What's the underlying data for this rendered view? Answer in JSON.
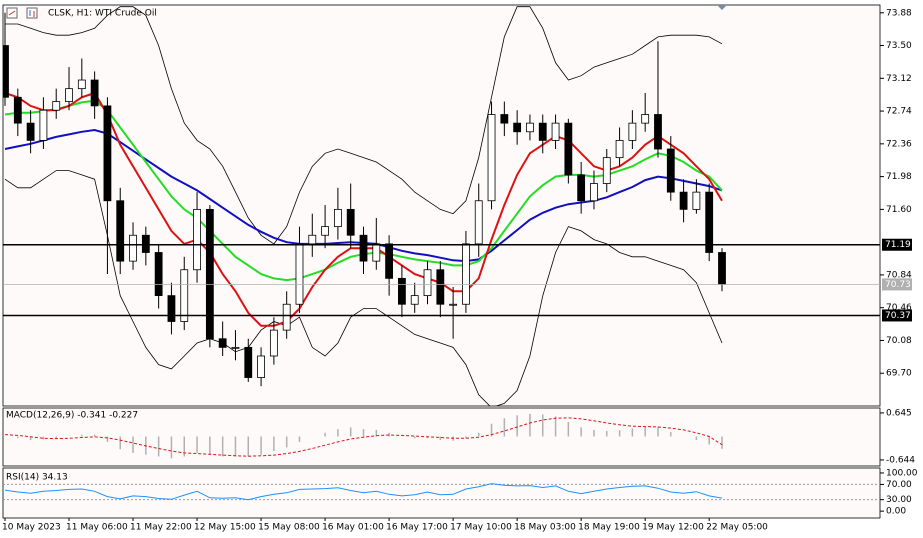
{
  "chart_data": [
    {
      "type": "candlestick",
      "title": "CLSK, H1:  WTI Crude Oil",
      "categories": [
        "10 May 2023",
        null,
        null,
        null,
        null,
        "11 May 06:00",
        null,
        null,
        null,
        null,
        "11 May 22:00",
        null,
        null,
        null,
        null,
        "12 May 15:00",
        null,
        null,
        null,
        null,
        "15 May 08:00",
        null,
        null,
        null,
        null,
        "16 May 01:00",
        null,
        null,
        null,
        null,
        "16 May 17:00",
        null,
        null,
        null,
        null,
        "17 May 10:00",
        null,
        null,
        null,
        null,
        "18 May 03:00",
        null,
        null,
        null,
        null,
        "18 May 19:00",
        null,
        null,
        null,
        null,
        "19 May 12:00",
        null,
        null,
        null,
        null,
        "22 May 05:00",
        null
      ],
      "open": [
        73.5,
        72.9,
        72.6,
        72.4,
        72.75,
        72.85,
        73.0,
        73.1,
        72.8,
        71.7,
        71.0,
        71.3,
        71.1,
        70.6,
        70.3,
        70.9,
        71.6,
        70.1,
        70.0,
        70.0,
        69.65,
        69.9,
        70.2,
        70.5,
        71.2,
        71.3,
        71.4,
        71.6,
        71.3,
        71.0,
        71.2,
        70.8,
        70.5,
        70.6,
        70.9,
        70.5,
        70.5,
        71.2,
        71.7,
        72.7,
        72.6,
        72.5,
        72.6,
        72.4,
        72.6,
        72.0,
        71.7,
        71.9,
        72.2,
        72.4,
        72.6,
        72.7,
        72.3,
        71.8,
        71.6,
        71.8,
        71.1
      ],
      "high": [
        73.88,
        73.0,
        72.75,
        72.9,
        73.0,
        73.25,
        73.35,
        73.2,
        72.9,
        71.85,
        71.45,
        71.4,
        71.2,
        70.75,
        71.05,
        71.8,
        71.65,
        70.3,
        70.2,
        70.1,
        70.0,
        70.35,
        70.65,
        71.4,
        71.55,
        71.65,
        71.85,
        71.9,
        71.4,
        71.5,
        71.3,
        70.95,
        70.75,
        71.0,
        71.0,
        70.7,
        71.35,
        71.9,
        72.85,
        72.85,
        72.75,
        72.7,
        72.7,
        72.7,
        72.65,
        72.15,
        72.05,
        72.3,
        72.55,
        72.75,
        72.95,
        73.55,
        72.45,
        71.95,
        71.95,
        71.9,
        71.15
      ],
      "low": [
        72.8,
        72.45,
        72.25,
        72.3,
        72.65,
        72.75,
        72.9,
        72.65,
        70.85,
        70.85,
        70.9,
        70.95,
        70.45,
        70.15,
        70.2,
        70.75,
        70.0,
        69.9,
        69.85,
        69.6,
        69.55,
        69.8,
        70.1,
        70.4,
        71.05,
        71.15,
        71.25,
        71.15,
        70.85,
        70.9,
        70.6,
        70.35,
        70.4,
        70.5,
        70.35,
        70.1,
        70.4,
        71.05,
        71.6,
        72.45,
        72.35,
        72.4,
        72.25,
        72.3,
        71.9,
        71.55,
        71.6,
        71.8,
        72.1,
        72.3,
        72.5,
        72.2,
        71.7,
        71.45,
        71.55,
        71.0,
        70.65
      ],
      "close": [
        72.9,
        72.6,
        72.4,
        72.75,
        72.85,
        73.0,
        73.1,
        72.8,
        71.7,
        71.0,
        71.3,
        71.1,
        70.6,
        70.3,
        70.9,
        71.6,
        70.1,
        70.0,
        70.0,
        69.65,
        69.9,
        70.2,
        70.5,
        71.2,
        71.3,
        71.4,
        71.6,
        71.3,
        71.0,
        71.2,
        70.8,
        70.5,
        70.6,
        70.9,
        70.5,
        70.5,
        71.2,
        71.7,
        72.7,
        72.6,
        72.5,
        72.6,
        72.4,
        72.6,
        72.0,
        71.7,
        71.9,
        72.2,
        72.4,
        72.6,
        72.7,
        72.3,
        71.8,
        71.6,
        71.8,
        71.1,
        70.73
      ],
      "overlays": [
        {
          "color": "#000000",
          "values": [
            73.75,
            73.75,
            73.7,
            73.65,
            73.62,
            73.62,
            73.65,
            73.7,
            73.85,
            73.95,
            73.95,
            73.85,
            73.5,
            73.0,
            72.6,
            72.4,
            72.3,
            72.1,
            71.8,
            71.5,
            71.3,
            71.2,
            71.4,
            71.8,
            72.1,
            72.25,
            72.3,
            72.25,
            72.2,
            72.15,
            72.05,
            71.95,
            71.8,
            71.7,
            71.6,
            71.55,
            71.7,
            72.2,
            72.9,
            73.6,
            73.95,
            73.95,
            73.7,
            73.3,
            73.1,
            73.15,
            73.25,
            73.3,
            73.35,
            73.4,
            73.5,
            73.6,
            73.62,
            73.62,
            73.62,
            73.6,
            73.52
          ]
        },
        {
          "color": "#000000",
          "values": [
            71.95,
            71.85,
            71.85,
            71.95,
            72.05,
            72.05,
            72.0,
            71.95,
            71.3,
            70.6,
            70.3,
            70.0,
            69.8,
            69.75,
            69.9,
            70.05,
            70.1,
            70.05,
            69.95,
            70.0,
            70.2,
            70.3,
            70.25,
            70.35,
            70.0,
            69.9,
            70.05,
            70.35,
            70.45,
            70.45,
            70.35,
            70.25,
            70.15,
            70.1,
            70.05,
            70.0,
            69.8,
            69.45,
            69.3,
            69.35,
            69.5,
            69.9,
            70.6,
            71.1,
            71.4,
            71.35,
            71.25,
            71.2,
            71.1,
            71.05,
            71.05,
            71.0,
            70.95,
            70.9,
            70.75,
            70.4,
            70.05
          ]
        },
        {
          "color": "#1010c0",
          "values": [
            72.3,
            72.33,
            72.36,
            72.4,
            72.44,
            72.47,
            72.5,
            72.52,
            72.48,
            72.38,
            72.28,
            72.18,
            72.08,
            71.98,
            71.9,
            71.82,
            71.72,
            71.62,
            71.52,
            71.42,
            71.34,
            71.27,
            71.22,
            71.2,
            71.2,
            71.2,
            71.21,
            71.22,
            71.21,
            71.2,
            71.16,
            71.12,
            71.09,
            71.07,
            71.04,
            71.01,
            71.0,
            71.02,
            71.12,
            71.24,
            71.36,
            71.48,
            71.56,
            71.62,
            71.66,
            71.68,
            71.7,
            71.74,
            71.8,
            71.86,
            71.94,
            71.98,
            71.96,
            71.93,
            71.9,
            71.87,
            71.82
          ]
        },
        {
          "color": "#22dd22",
          "values": [
            72.7,
            72.72,
            72.72,
            72.74,
            72.76,
            72.8,
            72.84,
            72.86,
            72.75,
            72.55,
            72.35,
            72.15,
            71.95,
            71.75,
            71.6,
            71.5,
            71.35,
            71.2,
            71.05,
            70.95,
            70.85,
            70.8,
            70.78,
            70.8,
            70.85,
            70.9,
            70.98,
            71.05,
            71.08,
            71.1,
            71.08,
            71.05,
            71.02,
            71.0,
            70.98,
            70.95,
            70.95,
            71.0,
            71.15,
            71.35,
            71.55,
            71.75,
            71.88,
            71.98,
            72.0,
            72.0,
            71.98,
            72.0,
            72.05,
            72.1,
            72.18,
            72.25,
            72.22,
            72.15,
            72.05,
            71.98,
            71.82
          ]
        },
        {
          "color": "#dd1111",
          "values": [
            72.95,
            72.9,
            72.8,
            72.75,
            72.75,
            72.8,
            72.9,
            72.95,
            72.7,
            72.35,
            72.1,
            71.85,
            71.6,
            71.35,
            71.2,
            71.25,
            71.1,
            70.85,
            70.65,
            70.4,
            70.25,
            70.25,
            70.3,
            70.45,
            70.7,
            70.9,
            71.05,
            71.15,
            71.15,
            71.15,
            71.05,
            70.95,
            70.85,
            70.8,
            70.75,
            70.65,
            70.65,
            70.8,
            71.25,
            71.65,
            72.0,
            72.25,
            72.35,
            72.45,
            72.4,
            72.25,
            72.1,
            72.05,
            72.1,
            72.2,
            72.35,
            72.45,
            72.35,
            72.25,
            72.1,
            71.95,
            71.7
          ]
        }
      ],
      "levels": [
        71.19,
        70.37
      ],
      "last_price": 70.73,
      "ylim": [
        69.32,
        73.97
      ],
      "yticks": [
        73.88,
        {
          "value": 73.5,
          "label": "73.50"
        },
        73.12,
        72.74,
        72.36,
        71.98,
        {
          "value": 71.6,
          "label": "71.60"
        },
        70.84,
        70.46,
        70.08,
        {
          "value": 69.7,
          "label": "69.70"
        }
      ]
    },
    {
      "type": "macd",
      "title": "MACD(12,26,9) -0.341 -0.227",
      "series": [
        {
          "type": "bar",
          "color": "#b0b0b0",
          "values": [
            0.0,
            -0.05,
            -0.1,
            -0.08,
            -0.05,
            0.0,
            0.05,
            0.05,
            -0.15,
            -0.35,
            -0.45,
            -0.5,
            -0.55,
            -0.6,
            -0.55,
            -0.45,
            -0.5,
            -0.55,
            -0.55,
            -0.55,
            -0.5,
            -0.4,
            -0.3,
            -0.15,
            0.0,
            0.1,
            0.2,
            0.25,
            0.2,
            0.18,
            0.1,
            0.0,
            -0.05,
            -0.05,
            -0.1,
            -0.12,
            -0.05,
            0.1,
            0.35,
            0.5,
            0.58,
            0.62,
            0.6,
            0.55,
            0.4,
            0.25,
            0.18,
            0.15,
            0.17,
            0.22,
            0.28,
            0.25,
            0.12,
            0.0,
            -0.1,
            -0.22,
            -0.341
          ]
        },
        {
          "type": "line",
          "color": "#dd1111",
          "values": [
            0.05,
            0.03,
            -0.01,
            -0.05,
            -0.06,
            -0.05,
            -0.03,
            -0.01,
            -0.04,
            -0.1,
            -0.18,
            -0.26,
            -0.33,
            -0.4,
            -0.45,
            -0.47,
            -0.49,
            -0.51,
            -0.53,
            -0.54,
            -0.53,
            -0.51,
            -0.47,
            -0.41,
            -0.33,
            -0.24,
            -0.15,
            -0.07,
            -0.02,
            0.02,
            0.04,
            0.03,
            0.01,
            -0.01,
            -0.03,
            -0.05,
            -0.05,
            -0.02,
            0.05,
            0.15,
            0.26,
            0.37,
            0.45,
            0.5,
            0.51,
            0.48,
            0.43,
            0.37,
            0.32,
            0.28,
            0.27,
            0.26,
            0.23,
            0.18,
            0.1,
            0.0,
            -0.227
          ]
        }
      ],
      "ylim": [
        -0.81,
        0.78
      ],
      "yticks": [
        0.645,
        -0.644
      ]
    },
    {
      "type": "line",
      "title": "RSI(14) 34.13",
      "color": "#1e90ff",
      "values": [
        55,
        50,
        47,
        52,
        54,
        57,
        58,
        52,
        38,
        32,
        40,
        38,
        33,
        31,
        42,
        52,
        35,
        34,
        35,
        30,
        38,
        44,
        48,
        57,
        58,
        59,
        61,
        54,
        48,
        52,
        44,
        40,
        43,
        50,
        43,
        44,
        58,
        64,
        72,
        68,
        66,
        67,
        62,
        66,
        52,
        46,
        52,
        58,
        62,
        65,
        66,
        60,
        50,
        47,
        51,
        40,
        34.13
      ],
      "levels": [
        70,
        30
      ],
      "ylim": [
        -18,
        113
      ],
      "yticks": [
        {
          "value": 100,
          "label": "100.00"
        },
        {
          "value": 70,
          "label": "70.00"
        },
        {
          "value": 30,
          "label": "30.00"
        },
        {
          "value": 0,
          "label": "0.00"
        }
      ]
    }
  ]
}
